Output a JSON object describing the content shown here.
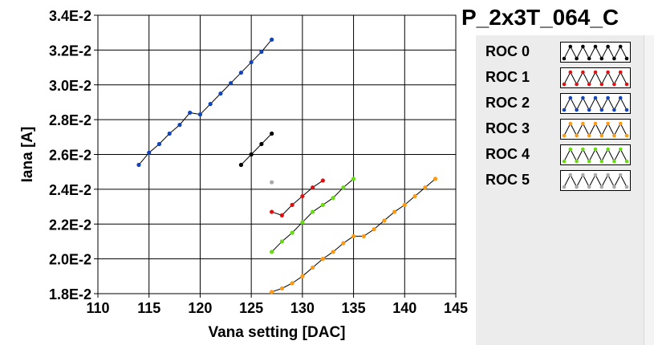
{
  "chart_data": {
    "type": "scatter",
    "title": "P_2x3T_064_C",
    "xlabel": "Vana setting [DAC]",
    "ylabel": "Iana [A]",
    "xlim": [
      110,
      145
    ],
    "ylim": [
      0.018,
      0.034
    ],
    "x_ticks": [
      "110",
      "115",
      "120",
      "125",
      "130",
      "135",
      "140",
      "145"
    ],
    "y_ticks": [
      "1.8E-2",
      "2.0E-2",
      "2.2E-2",
      "2.4E-2",
      "2.6E-2",
      "2.8E-2",
      "3.0E-2",
      "3.2E-2",
      "3.4E-2"
    ],
    "grid": true,
    "legend_position": "right",
    "series": [
      {
        "name": "ROC 0",
        "color": "#000000",
        "x": [
          124,
          125,
          126,
          127
        ],
        "y": [
          0.0254,
          0.026,
          0.0266,
          0.0272
        ]
      },
      {
        "name": "ROC 1",
        "color": "#dd1111",
        "x": [
          127,
          128,
          129,
          130,
          131,
          132
        ],
        "y": [
          0.0227,
          0.0225,
          0.0231,
          0.0236,
          0.0241,
          0.0245
        ]
      },
      {
        "name": "ROC 2",
        "color": "#1144bb",
        "x": [
          114,
          115,
          116,
          117,
          118,
          119,
          120,
          121,
          122,
          123,
          124,
          125,
          126,
          127
        ],
        "y": [
          0.0254,
          0.0261,
          0.0266,
          0.0272,
          0.0277,
          0.0284,
          0.0283,
          0.0289,
          0.0295,
          0.0301,
          0.0307,
          0.0313,
          0.0319,
          0.0326
        ]
      },
      {
        "name": "ROC 3",
        "color": "#ff9911",
        "x": [
          127,
          128,
          129,
          130,
          131,
          132,
          133,
          134,
          135,
          136,
          137,
          138,
          139,
          140,
          141,
          142,
          143
        ],
        "y": [
          0.0181,
          0.0183,
          0.0186,
          0.019,
          0.0195,
          0.02,
          0.0204,
          0.0209,
          0.0213,
          0.0213,
          0.0217,
          0.0222,
          0.0227,
          0.0231,
          0.0236,
          0.0241,
          0.0246
        ]
      },
      {
        "name": "ROC 4",
        "color": "#66dd11",
        "x": [
          127,
          128,
          129,
          130,
          131,
          132,
          133,
          134,
          135
        ],
        "y": [
          0.0204,
          0.021,
          0.0215,
          0.0221,
          0.0227,
          0.0231,
          0.0235,
          0.0241,
          0.0246
        ]
      },
      {
        "name": "ROC 5",
        "color": "#aaaaaa",
        "x": [
          127
        ],
        "y": [
          0.0244
        ]
      }
    ]
  }
}
